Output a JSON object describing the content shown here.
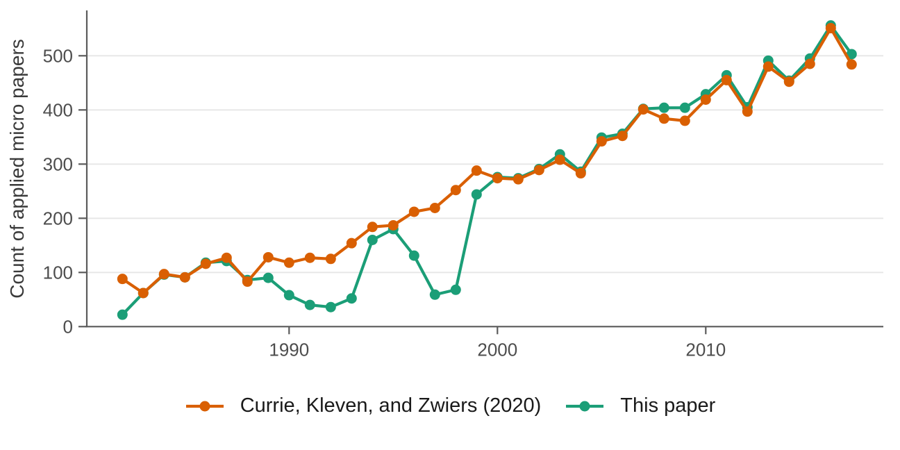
{
  "chart_data": {
    "type": "line",
    "title": "",
    "xlabel": "",
    "ylabel": "Count of applied micro papers",
    "x": [
      1982,
      1983,
      1984,
      1985,
      1986,
      1987,
      1988,
      1989,
      1990,
      1991,
      1992,
      1993,
      1994,
      1995,
      1996,
      1997,
      1998,
      1999,
      2000,
      2001,
      2002,
      2003,
      2004,
      2005,
      2006,
      2007,
      2008,
      2009,
      2010,
      2011,
      2012,
      2013,
      2014,
      2015,
      2016,
      2017
    ],
    "x_tick_labels": [
      "1990",
      "2000",
      "2010"
    ],
    "x_tick_years": [
      1990,
      2000,
      2010
    ],
    "y_tick_labels": [
      "0",
      "100",
      "200",
      "300",
      "400",
      "500"
    ],
    "y_tick_values": [
      0,
      100,
      200,
      300,
      400,
      500
    ],
    "ylim": [
      0,
      583
    ],
    "xlim": [
      1980.3,
      2018.4
    ],
    "grid": "horizontal",
    "legend_position": "bottom-center",
    "series": [
      {
        "name": "Currie, Kleven, and Zwiers (2020)",
        "color": "#D95F02",
        "values": [
          88,
          62,
          97,
          91,
          116,
          127,
          83,
          128,
          118,
          127,
          125,
          154,
          184,
          187,
          212,
          219,
          252,
          288,
          274,
          272,
          289,
          308,
          283,
          342,
          352,
          401,
          384,
          380,
          419,
          455,
          397,
          480,
          452,
          485,
          551,
          484
        ]
      },
      {
        "name": "This paper",
        "color": "#1B9E77",
        "values": [
          22,
          62,
          96,
          91,
          118,
          121,
          86,
          90,
          58,
          40,
          36,
          52,
          160,
          180,
          131,
          59,
          68,
          244,
          276,
          274,
          291,
          318,
          286,
          349,
          356,
          402,
          404,
          404,
          429,
          464,
          405,
          491,
          454,
          495,
          556,
          503
        ]
      }
    ]
  },
  "colors": {
    "background": "#ffffff",
    "gridline": "#e6e6e6",
    "axis": "#5b5b5b",
    "tick_text": "#4d4d4d",
    "axis_title_text": "#3a3a3a",
    "legend_text": "#1a1a1a",
    "series_orange": "#D95F02",
    "series_teal": "#1B9E77"
  }
}
